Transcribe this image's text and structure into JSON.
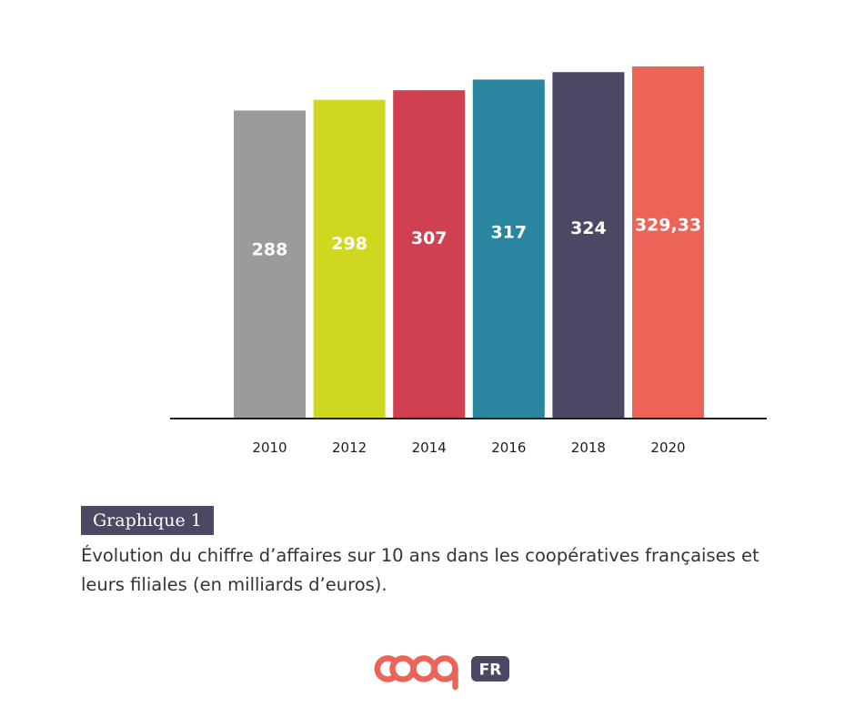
{
  "chart_data": {
    "type": "bar",
    "categories": [
      "2010",
      "2012",
      "2014",
      "2016",
      "2018",
      "2020"
    ],
    "values": [
      288,
      298,
      307,
      317,
      324,
      329.33
    ],
    "value_labels": [
      "288",
      "298",
      "307",
      "317",
      "324",
      "329,33"
    ],
    "colors": [
      "#9b9b99",
      "#cfd81f",
      "#cf4150",
      "#2a85a0",
      "#4e4763",
      "#ec6358"
    ],
    "ylim": [
      0,
      329.33
    ],
    "grid": false,
    "legend": "none"
  },
  "caption": {
    "tag": "Graphique 1",
    "text": "Évolution du chiffre d’affaires sur 10 ans dans les coopératives françaises et leurs filiales (en milliards d’euros)."
  },
  "logo": {
    "fr": "FR",
    "colors": {
      "coop": "#ec6358",
      "badge": "#4e4763"
    }
  }
}
